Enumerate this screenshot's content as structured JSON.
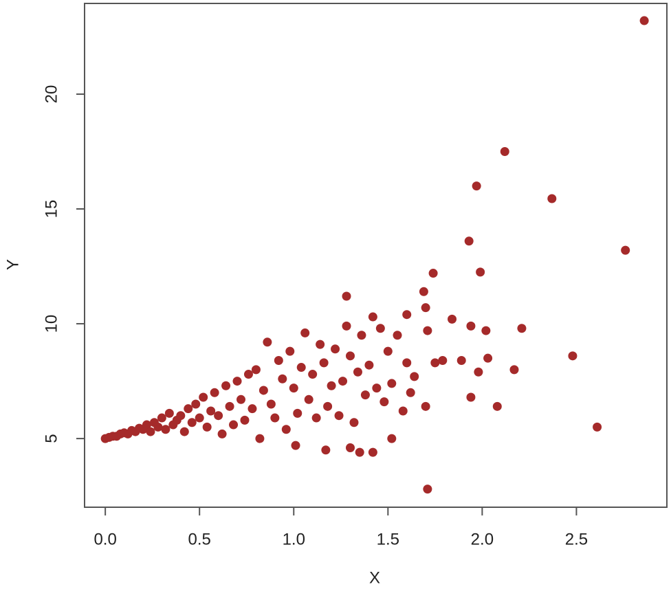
{
  "chart_data": {
    "type": "scatter",
    "x_label": "X",
    "y_label": "Y",
    "color": "#a52a2a",
    "xlim": [
      -0.11,
      2.98
    ],
    "ylim": [
      2.01,
      23.95
    ],
    "xticks": [
      {
        "value": 0,
        "label": "0.0"
      },
      0.5,
      {
        "value": 1,
        "label": "1.0"
      },
      1.5,
      {
        "value": 2,
        "label": "2.0"
      },
      2.5
    ],
    "yticks": [
      5,
      10,
      15,
      20
    ],
    "x": [
      2.86,
      2.12,
      1.97,
      2.37,
      1.93,
      2.76,
      1.74,
      1.99,
      1.69,
      1.28,
      1.7,
      1.6,
      2.21,
      1.84,
      1.94,
      2.02,
      1.71,
      2.48,
      2.03,
      1.79,
      1.75,
      1.89,
      1.98,
      2.17,
      1.64,
      1.94,
      2.08,
      1.7,
      2.61,
      1.71,
      1.35,
      1.3,
      1.42,
      1.17,
      1.01,
      1.52,
      0.0,
      0.02,
      0.04,
      0.06,
      0.08,
      0.1,
      0.12,
      0.14,
      0.16,
      0.18,
      0.2,
      0.22,
      0.24,
      0.26,
      0.28,
      0.3,
      0.32,
      0.34,
      0.36,
      0.38,
      0.4,
      0.42,
      0.44,
      0.46,
      0.48,
      0.5,
      0.52,
      0.54,
      0.56,
      0.58,
      0.6,
      0.62,
      0.64,
      0.66,
      0.68,
      0.7,
      0.72,
      0.74,
      0.76,
      0.78,
      0.8,
      0.82,
      0.84,
      0.86,
      0.88,
      0.9,
      0.92,
      0.94,
      0.96,
      0.98,
      1.0,
      1.02,
      1.04,
      1.06,
      1.08,
      1.1,
      1.12,
      1.14,
      1.16,
      1.18,
      1.2,
      1.22,
      1.24,
      1.26,
      1.28,
      1.3,
      1.32,
      1.34,
      1.36,
      1.38,
      1.4,
      1.42,
      1.44,
      1.46,
      1.48,
      1.5,
      1.52,
      1.55,
      1.58,
      1.6,
      1.62
    ],
    "values": [
      23.2,
      17.5,
      16.0,
      15.45,
      13.6,
      13.2,
      12.2,
      12.25,
      11.4,
      11.2,
      10.7,
      10.4,
      9.8,
      10.2,
      9.9,
      9.7,
      9.7,
      8.6,
      8.5,
      8.4,
      8.3,
      8.4,
      7.9,
      8.0,
      7.7,
      6.8,
      6.4,
      6.4,
      5.5,
      2.8,
      4.4,
      4.6,
      4.4,
      4.5,
      4.7,
      5.0,
      5.0,
      5.05,
      5.1,
      5.1,
      5.2,
      5.25,
      5.2,
      5.35,
      5.3,
      5.45,
      5.4,
      5.6,
      5.3,
      5.7,
      5.5,
      5.9,
      5.4,
      6.1,
      5.6,
      5.8,
      6.0,
      5.3,
      6.3,
      5.7,
      6.5,
      5.9,
      6.8,
      5.5,
      6.2,
      7.0,
      6.0,
      5.2,
      7.3,
      6.4,
      5.6,
      7.5,
      6.7,
      5.8,
      7.8,
      6.3,
      8.0,
      5.0,
      7.1,
      9.2,
      6.5,
      5.9,
      8.4,
      7.6,
      5.4,
      8.8,
      7.2,
      6.1,
      8.1,
      9.6,
      6.7,
      7.8,
      5.9,
      9.1,
      8.3,
      6.4,
      7.3,
      8.9,
      6.0,
      7.5,
      9.9,
      8.6,
      5.7,
      7.9,
      9.5,
      6.9,
      8.2,
      10.3,
      7.2,
      9.8,
      6.6,
      8.8,
      7.4,
      9.5,
      6.2,
      8.3,
      7.0
    ]
  }
}
